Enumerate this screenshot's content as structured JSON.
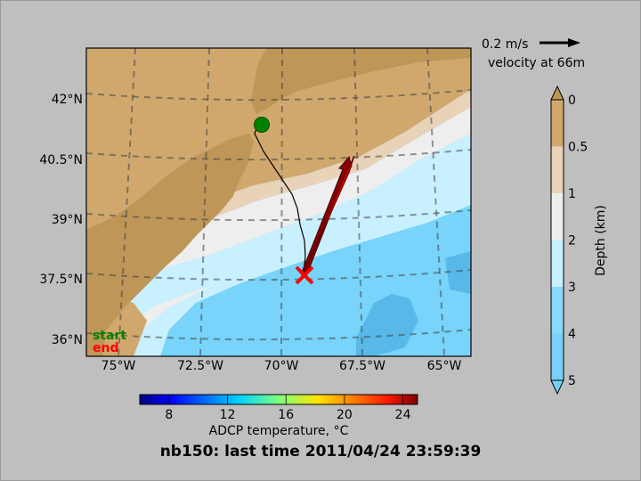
{
  "title": "nb150: last time 2011/04/24 23:59:39",
  "map": {
    "lat_ticks": [
      "42°N",
      "40.5°N",
      "39°N",
      "37.5°N",
      "36°N"
    ],
    "lon_ticks": [
      "75°W",
      "72.5°W",
      "70°W",
      "67.5°W",
      "65°W"
    ],
    "legend_start": "start",
    "legend_end": "end",
    "start_color": "#008000",
    "end_color": "#ff0000",
    "track_color": "#000000",
    "arrow_color": "#8b0000"
  },
  "velocity_key": {
    "scale_label": "0.2 m/s",
    "depth_label": "velocity at 66m"
  },
  "depth_colorbar": {
    "label": "Depth (km)",
    "ticks": [
      "0",
      "0.5",
      "1",
      "2",
      "3",
      "4",
      "5"
    ],
    "colors": [
      "#be9658",
      "#d0a86e",
      "#e8d2b8",
      "#eeeeee",
      "#c8f0ff",
      "#88d8ff",
      "#78d0f8"
    ]
  },
  "temp_colorbar": {
    "label": "ADCP temperature, °C",
    "ticks": [
      "8",
      "12",
      "16",
      "20",
      "24"
    ],
    "range": [
      6,
      25
    ]
  }
}
